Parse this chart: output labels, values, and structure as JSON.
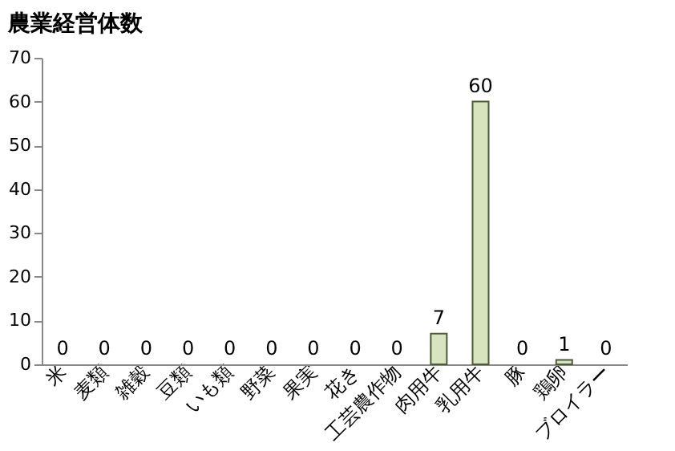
{
  "chart_data": {
    "type": "bar",
    "title": "農業経営体数",
    "categories": [
      "米",
      "麦類",
      "雑穀",
      "豆類",
      "いも類",
      "野菜",
      "果実",
      "花き",
      "工芸農作物",
      "肉用牛",
      "乳用牛",
      "豚",
      "鶏卵",
      "ブロイラー"
    ],
    "values": [
      0,
      0,
      0,
      0,
      0,
      0,
      0,
      0,
      0,
      7,
      60,
      0,
      1,
      0
    ],
    "color": "#d7e4bd",
    "ylim": [
      0,
      70
    ],
    "yticks": [
      0,
      10,
      20,
      30,
      40,
      50,
      60,
      70
    ],
    "grid": false,
    "data_labels": true
  }
}
